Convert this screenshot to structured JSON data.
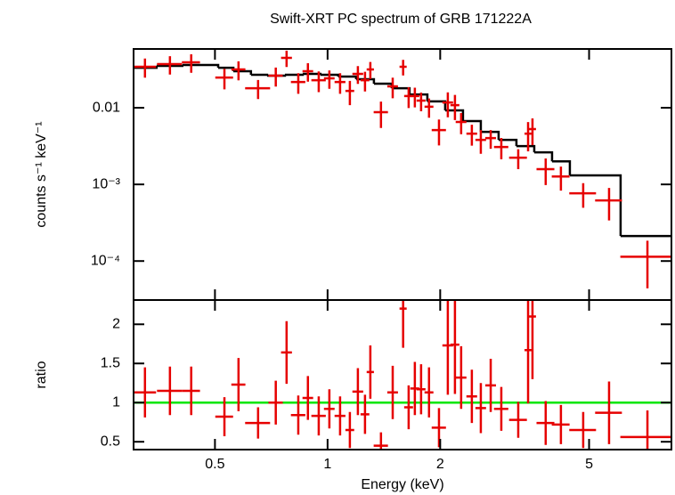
{
  "chart_data": [
    {
      "type": "errorbar",
      "title": "Swift-XRT PC spectrum of GRB 171222A",
      "ylabel": "counts s⁻¹ keV⁻¹",
      "xscale": "log",
      "yscale": "log",
      "xlim": [
        0.303,
        8.3
      ],
      "xticks": [
        0.5,
        1,
        2,
        5
      ],
      "ylim": [
        3.1e-05,
        0.0585
      ],
      "yticks": [
        0.01,
        {
          "value": 0.001,
          "label": "10⁻³"
        },
        {
          "value": 0.0001,
          "label": "10⁻⁴"
        }
      ],
      "series": [
        {
          "color": "#e60000",
          "x": [
            0.325,
            0.379,
            0.432,
            0.53,
            0.578,
            0.652,
            0.727,
            0.777,
            0.835,
            0.886,
            0.947,
            1.011,
            1.08,
            1.147,
            1.205,
            1.259,
            1.301,
            1.389,
            1.493,
            1.592,
            1.647,
            1.711,
            1.778,
            1.867,
            1.985,
            2.096,
            2.19,
            2.275,
            2.43,
            2.568,
            2.729,
            2.913,
            3.233,
            3.435,
            3.529,
            3.828,
            4.204,
            4.822,
            5.654,
            7.16
          ],
          "xerr": [
            0.023,
            0.029,
            0.024,
            0.029,
            0.025,
            0.05,
            0.032,
            0.026,
            0.037,
            0.029,
            0.042,
            0.033,
            0.036,
            0.031,
            0.04,
            0.034,
            0.029,
            0.061,
            0.049,
            0.035,
            0.045,
            0.047,
            0.049,
            0.051,
            0.087,
            0.069,
            0.06,
            0.075,
            0.08,
            0.084,
            0.09,
            0.128,
            0.177,
            0.075,
            0.077,
            0.21,
            0.23,
            0.396,
            0.465,
            1.1
          ],
          "values": [
            0.0343,
            0.0371,
            0.0392,
            0.0248,
            0.0316,
            0.018,
            0.0262,
            0.0448,
            0.0217,
            0.03,
            0.0229,
            0.0242,
            0.0217,
            0.0166,
            0.0277,
            0.0229,
            0.0316,
            0.00875,
            0.019,
            0.0343,
            0.0142,
            0.0142,
            0.0124,
            0.0103,
            0.00512,
            0.0117,
            0.0108,
            0.00652,
            0.0046,
            0.00381,
            0.00402,
            0.00308,
            0.00223,
            0.0046,
            0.00526,
            0.00158,
            0.00127,
            0.000766,
            0.000618,
            0.000114
          ],
          "yerr": [
            0.0096,
            0.01,
            0.0106,
            0.0074,
            0.0088,
            0.005,
            0.0073,
            0.0108,
            0.0065,
            0.0081,
            0.0069,
            0.0065,
            0.0065,
            0.0058,
            0.0072,
            0.0066,
            0.0079,
            0.0033,
            0.0057,
            0.0079,
            0.0043,
            0.0041,
            0.0034,
            0.0029,
            0.0019,
            0.0042,
            0.0039,
            0.002,
            0.0014,
            0.0013,
            0.0011,
            0.00095,
            0.00065,
            0.0019,
            0.002,
            0.0006,
            0.00044,
            0.00027,
            0.00028,
            7e-05
          ]
        }
      ],
      "model": {
        "color": "#000000",
        "edges": [
          0.303,
          0.349,
          0.409,
          0.457,
          0.51,
          0.56,
          0.624,
          0.689,
          0.769,
          0.858,
          0.957,
          1.068,
          1.192,
          1.33,
          1.484,
          1.656,
          1.848,
          2.062,
          2.301,
          2.568,
          2.865,
          3.197,
          3.568,
          3.981,
          4.442,
          6.07,
          8.3
        ],
        "values": [
          0.0333,
          0.0352,
          0.0361,
          0.0361,
          0.0333,
          0.03,
          0.0269,
          0.0262,
          0.0269,
          0.0277,
          0.0269,
          0.0255,
          0.0236,
          0.0206,
          0.018,
          0.0149,
          0.0121,
          0.00923,
          0.0067,
          0.00485,
          0.00381,
          0.00316,
          0.00262,
          0.002,
          0.00131,
          0.000212
        ]
      }
    },
    {
      "type": "ratio",
      "xlabel": "Energy (keV)",
      "ylabel": "ratio",
      "yscale": "linear",
      "ylim": [
        0.4,
        2.31
      ],
      "yticks": [
        0.5,
        1,
        1.5,
        2
      ],
      "reference": 1,
      "reference_color": "#00e600",
      "series": [
        {
          "color": "#e60000",
          "values": [
            1.13,
            1.15,
            1.15,
            0.82,
            1.23,
            0.74,
            1.0,
            1.64,
            0.84,
            1.06,
            0.83,
            0.92,
            0.83,
            0.65,
            1.14,
            0.85,
            1.39,
            0.45,
            1.13,
            2.2,
            0.94,
            1.18,
            1.17,
            1.13,
            0.68,
            1.73,
            1.74,
            1.32,
            1.08,
            0.93,
            1.22,
            0.92,
            0.78,
            1.67,
            2.1,
            0.74,
            0.72,
            0.65,
            0.87,
            0.56
          ],
          "yerr": [
            0.32,
            0.31,
            0.31,
            0.25,
            0.34,
            0.2,
            0.28,
            0.4,
            0.25,
            0.28,
            0.25,
            0.25,
            0.25,
            0.23,
            0.3,
            0.25,
            0.34,
            0.17,
            0.34,
            0.5,
            0.28,
            0.34,
            0.32,
            0.32,
            0.25,
            0.63,
            0.63,
            0.4,
            0.34,
            0.32,
            0.34,
            0.28,
            0.23,
            0.68,
            0.8,
            0.28,
            0.25,
            0.23,
            0.4,
            0.34
          ]
        }
      ]
    }
  ]
}
